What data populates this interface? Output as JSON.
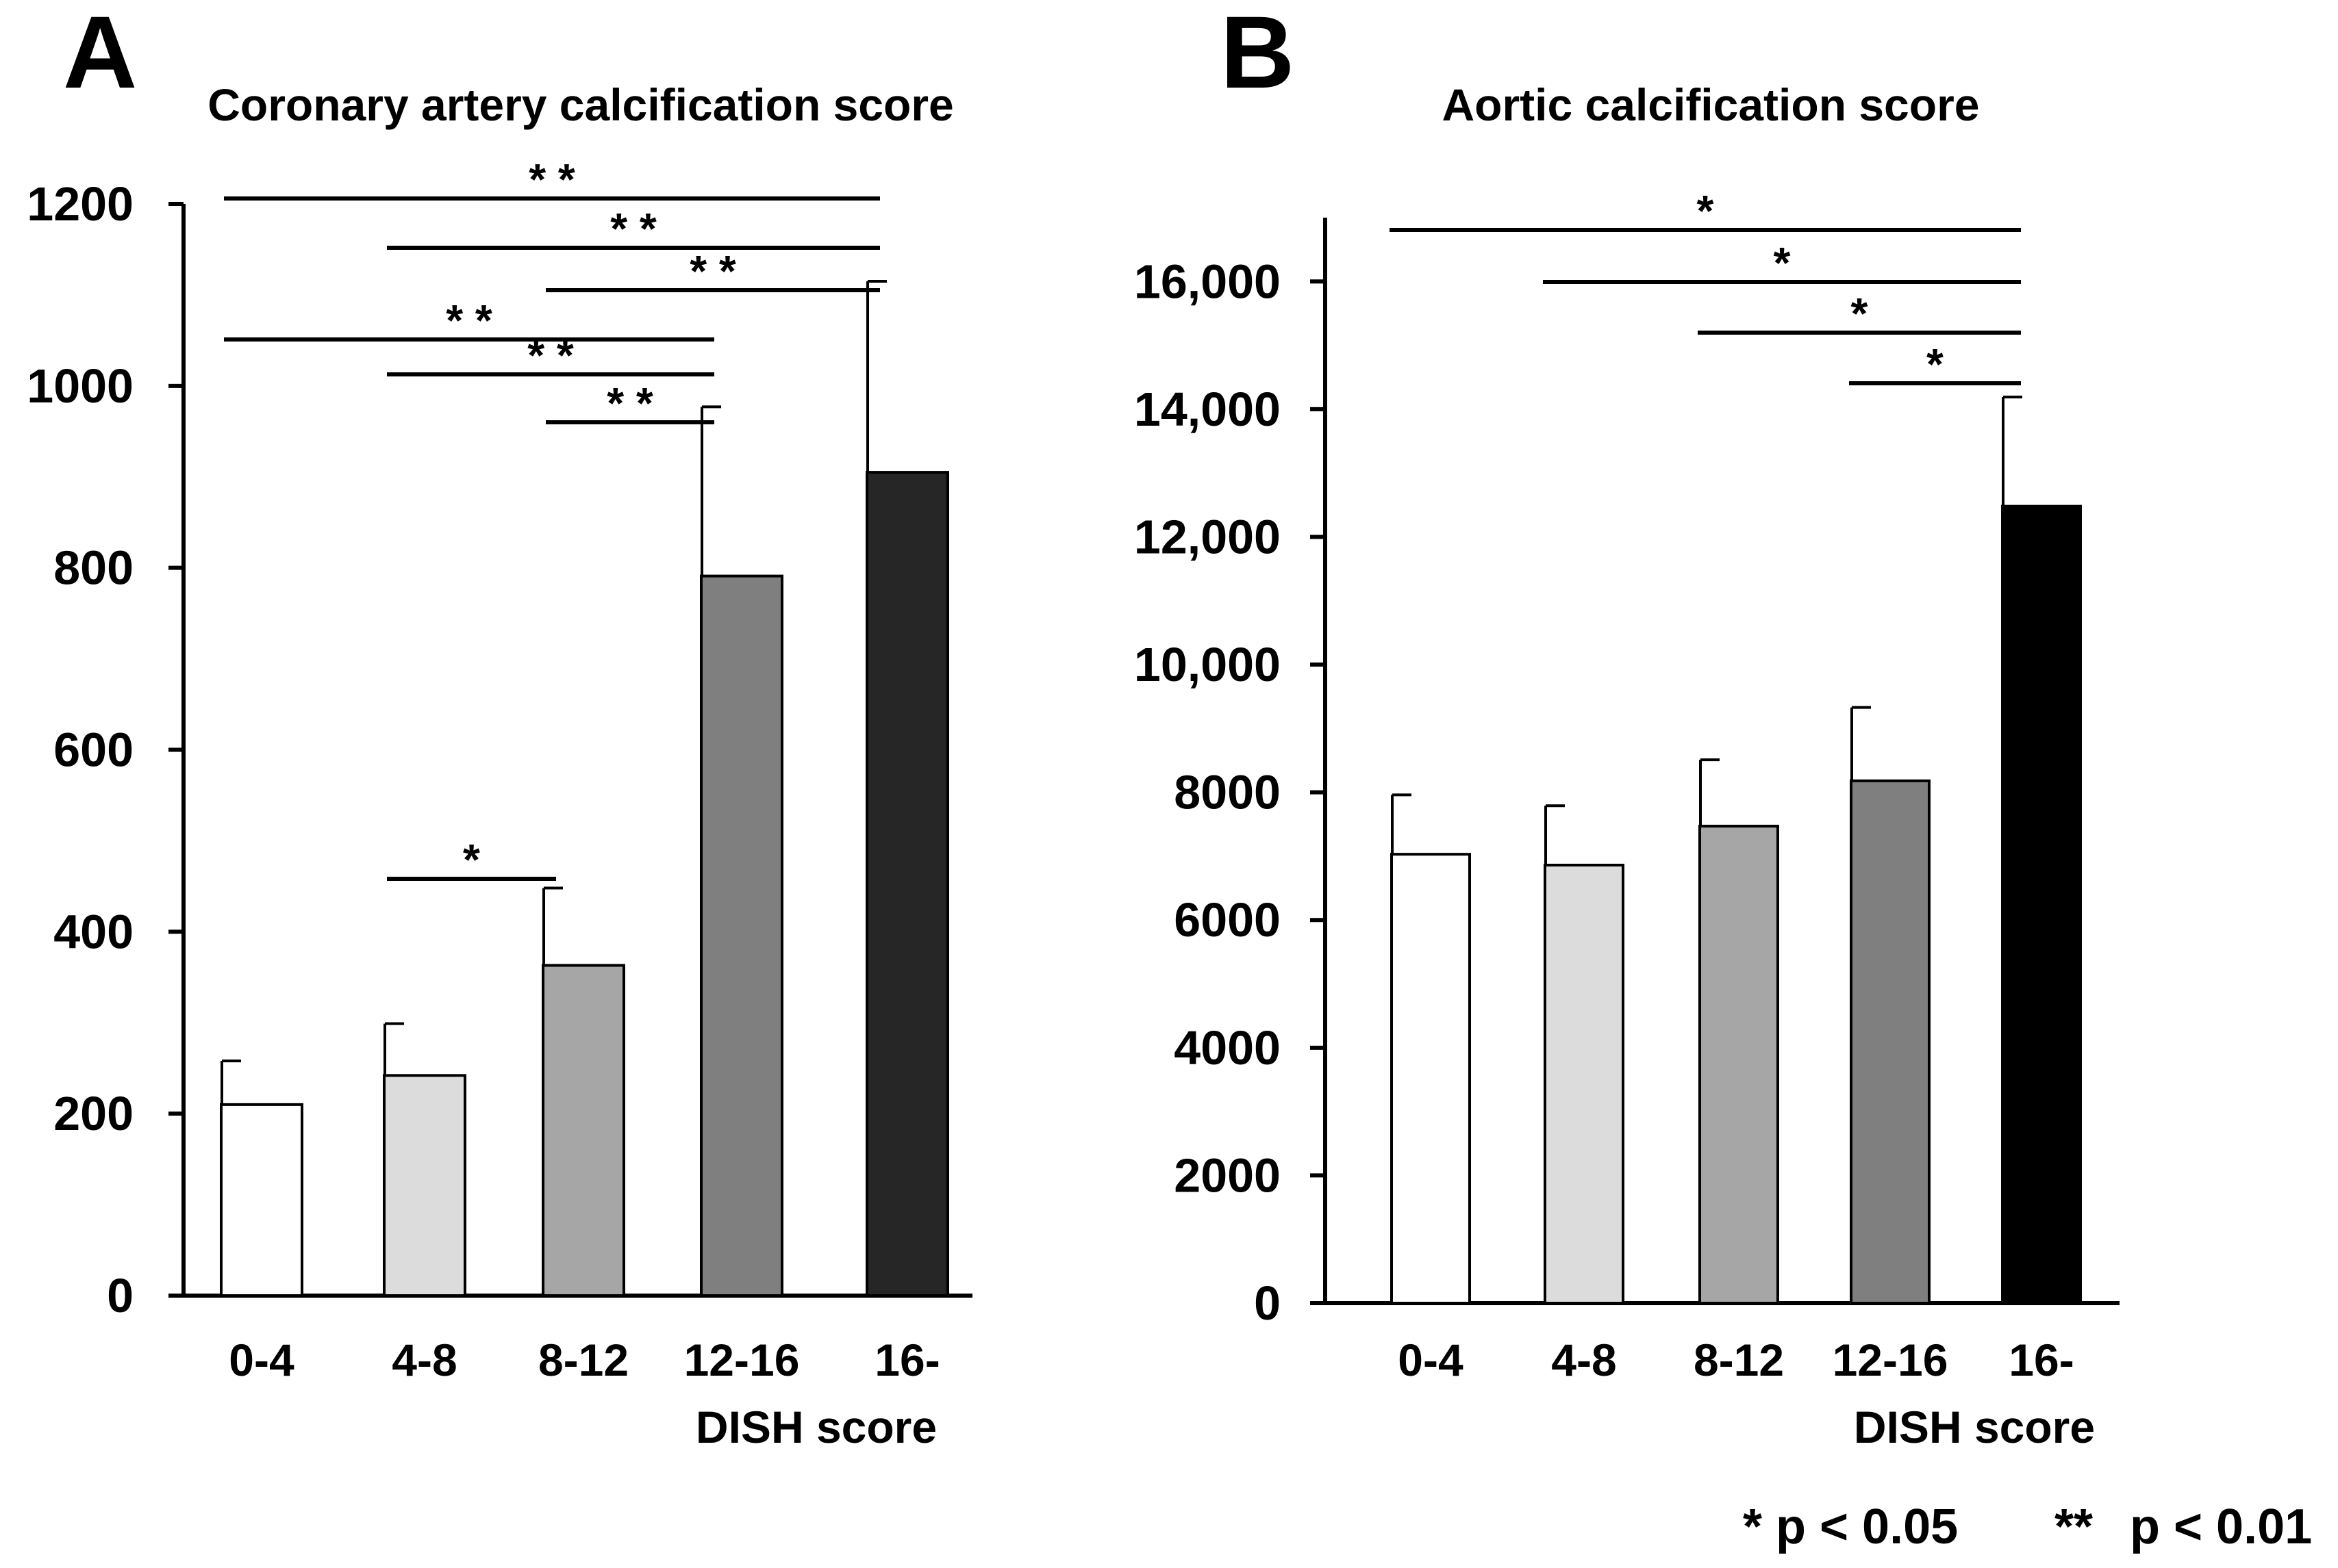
{
  "chart_data": [
    {
      "panel_label": "A",
      "type": "bar",
      "title": "Coronary artery calcification score",
      "xlabel": "DISH score",
      "ylabel": "",
      "categories": [
        "0-4",
        "4-8",
        "8-12",
        "12-16",
        "16-"
      ],
      "values": [
        210,
        242,
        363,
        791,
        905
      ],
      "errors": [
        48,
        57,
        85,
        186,
        210
      ],
      "colors": [
        "#ffffff",
        "#dcdcdc",
        "#a6a6a6",
        "#7f7f7f",
        "#262626"
      ],
      "ylim": [
        0,
        1200
      ],
      "yticks": [
        0,
        200,
        400,
        600,
        800,
        1000,
        1200
      ],
      "ytick_labels": [
        "0",
        "200",
        "400",
        "600",
        "800",
        "1000",
        "1200"
      ],
      "significance": [
        {
          "from": 0,
          "to": 4,
          "label": "* *"
        },
        {
          "from": 1,
          "to": 4,
          "label": "* *"
        },
        {
          "from": 2,
          "to": 4,
          "label": "* *"
        },
        {
          "from": 0,
          "to": 3,
          "label": "* *"
        },
        {
          "from": 1,
          "to": 3,
          "label": "* *"
        },
        {
          "from": 2,
          "to": 3,
          "label": "* *"
        },
        {
          "from": 1,
          "to": 2,
          "label": "*"
        }
      ]
    },
    {
      "panel_label": "B",
      "type": "bar",
      "title": "Aortic calcification score",
      "xlabel": "DISH score",
      "ylabel": "",
      "categories": [
        "0-4",
        "4-8",
        "8-12",
        "12-16",
        "16-"
      ],
      "values": [
        7030,
        6860,
        7470,
        8180,
        12480
      ],
      "errors": [
        930,
        930,
        1040,
        1150,
        1710
      ],
      "colors": [
        "#ffffff",
        "#dcdcdc",
        "#a6a6a6",
        "#7f7f7f",
        "#000000"
      ],
      "ylim": [
        0,
        17000
      ],
      "yticks": [
        0,
        2000,
        4000,
        6000,
        8000,
        10000,
        12000,
        14000,
        16000
      ],
      "ytick_labels": [
        "0",
        "2000",
        "4000",
        "6000",
        "8000",
        "10,000",
        "12,000",
        "14,000",
        "16,000"
      ],
      "significance": [
        {
          "from": 0,
          "to": 4,
          "label": "*"
        },
        {
          "from": 1,
          "to": 4,
          "label": "*"
        },
        {
          "from": 2,
          "to": 4,
          "label": "*"
        },
        {
          "from": 3,
          "to": 4,
          "label": "*"
        }
      ]
    }
  ],
  "legend": {
    "p05": "* p < 0.05",
    "p01_stars": "**",
    "p01_text": "p < 0.01"
  }
}
